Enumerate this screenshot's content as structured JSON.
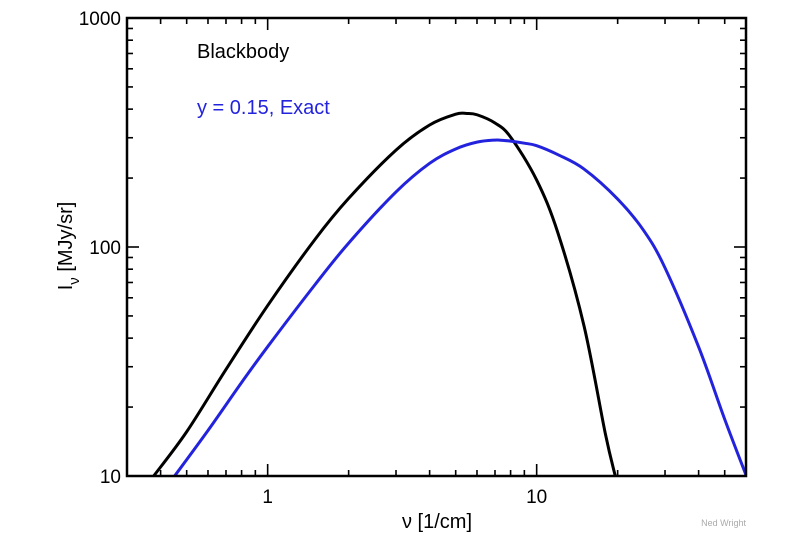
{
  "chart_data": {
    "type": "line",
    "xscale": "log",
    "yscale": "log",
    "xlim": [
      0.3,
      60
    ],
    "ylim": [
      10,
      1000
    ],
    "xlabel": "ν [1/cm]",
    "ylabel_main": "I",
    "ylabel_sub": "ν",
    "ylabel_rest": " [MJy/sr]",
    "x_tick_labels": [
      {
        "value": 1,
        "label": "1"
      },
      {
        "value": 10,
        "label": "10"
      }
    ],
    "y_tick_labels": [
      {
        "value": 10,
        "label": "10"
      },
      {
        "value": 100,
        "label": "100"
      },
      {
        "value": 1000,
        "label": "1000"
      }
    ],
    "grid": false,
    "legend_position": "top-left",
    "series": [
      {
        "name": "Blackbody",
        "color": "#000000",
        "x": [
          0.377,
          0.5,
          0.7,
          1.0,
          1.5,
          2.0,
          3.0,
          4.0,
          5.0,
          5.5,
          6.0,
          7.0,
          8.0,
          10.0,
          12.0,
          15.0,
          18.0,
          19.6
        ],
        "y": [
          10,
          15.6,
          29.2,
          55.5,
          108,
          163,
          265,
          341,
          380,
          383,
          378,
          348,
          302,
          196,
          115,
          45.2,
          15.3,
          10
        ]
      },
      {
        "name": "y = 0.15, Exact",
        "color": "#2323dd",
        "x": [
          0.451,
          0.6,
          0.8,
          1.0,
          1.5,
          2.0,
          3.0,
          4.0,
          5.0,
          6.0,
          7.0,
          7.5,
          8.0,
          9.0,
          10.0,
          12.0,
          15.0,
          20.0,
          25.0,
          30.0,
          40.0,
          50.0,
          60.2
        ],
        "y": [
          10,
          15.8,
          25.6,
          36.7,
          68.5,
          104,
          174,
          232,
          268,
          287,
          293,
          292,
          290,
          284,
          277,
          253,
          219,
          162,
          118,
          81.1,
          36.6,
          17.7,
          10
        ]
      }
    ],
    "credit": "Ned Wright"
  }
}
